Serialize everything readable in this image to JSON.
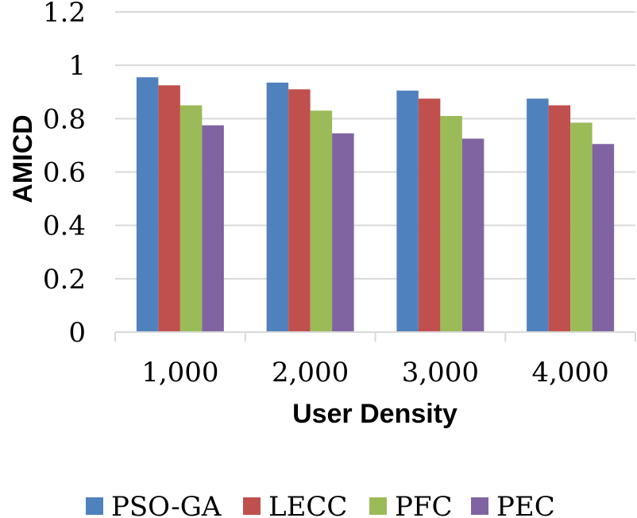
{
  "chart_data": {
    "type": "bar",
    "title": "",
    "xlabel": "User Density",
    "ylabel": "AMICD",
    "categories": [
      "1,000",
      "2,000",
      "3,000",
      "4,000"
    ],
    "ylim": [
      0,
      1.2
    ],
    "yticks": [
      "0",
      "0.2",
      "0.4",
      "0.6",
      "0.8",
      "1",
      "1.2"
    ],
    "ytick_values": [
      0,
      0.2,
      0.4,
      0.6,
      0.8,
      1.0,
      1.2
    ],
    "grid": true,
    "legend_position": "bottom",
    "series": [
      {
        "name": "PSO-GA",
        "color": "#4F81BD",
        "values": [
          0.955,
          0.935,
          0.905,
          0.875
        ]
      },
      {
        "name": "LECC",
        "color": "#C0504D",
        "values": [
          0.925,
          0.91,
          0.875,
          0.85
        ]
      },
      {
        "name": "PFC",
        "color": "#9BBB59",
        "values": [
          0.85,
          0.83,
          0.81,
          0.785
        ]
      },
      {
        "name": "PEC",
        "color": "#8064A2",
        "values": [
          0.775,
          0.745,
          0.725,
          0.705
        ]
      }
    ]
  }
}
